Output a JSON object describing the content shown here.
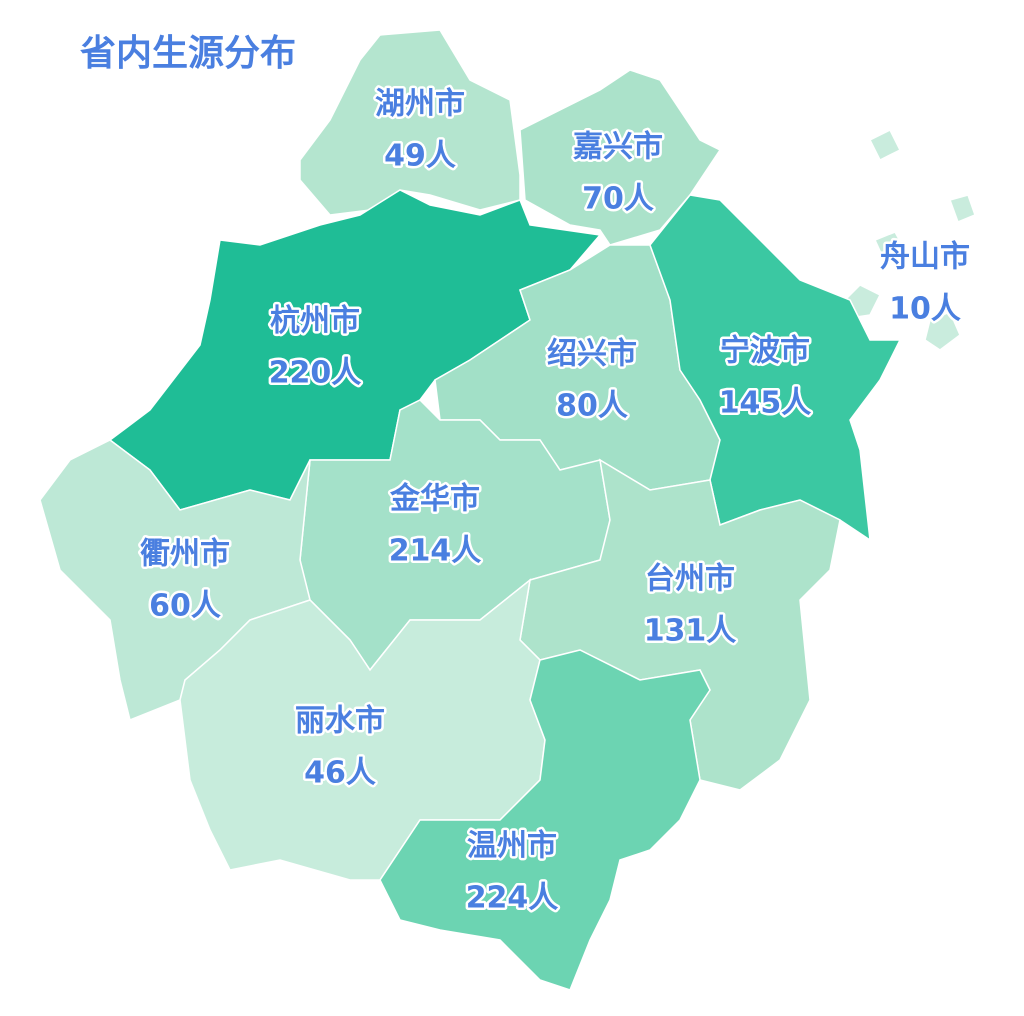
{
  "title": "省内生源分布",
  "regions": [
    {
      "name": "湖州市",
      "count": "49人",
      "color": "#b4e5cf"
    },
    {
      "name": "嘉兴市",
      "count": "70人",
      "color": "#abe2ca"
    },
    {
      "name": "舟山市",
      "count": "10人",
      "color": "#c9ecdd"
    },
    {
      "name": "杭州市",
      "count": "220人",
      "color": "#1fbd96"
    },
    {
      "name": "绍兴市",
      "count": "80人",
      "color": "#a2e0c7"
    },
    {
      "name": "宁波市",
      "count": "145人",
      "color": "#3bc8a2"
    },
    {
      "name": "金华市",
      "count": "214人",
      "color": "#a4e1c9"
    },
    {
      "name": "衢州市",
      "count": "60人",
      "color": "#bde8d6"
    },
    {
      "name": "台州市",
      "count": "131人",
      "color": "#ade3cb"
    },
    {
      "name": "丽水市",
      "count": "46人",
      "color": "#c7ecdc"
    },
    {
      "name": "温州市",
      "count": "224人",
      "color": "#6cd4b2"
    }
  ]
}
